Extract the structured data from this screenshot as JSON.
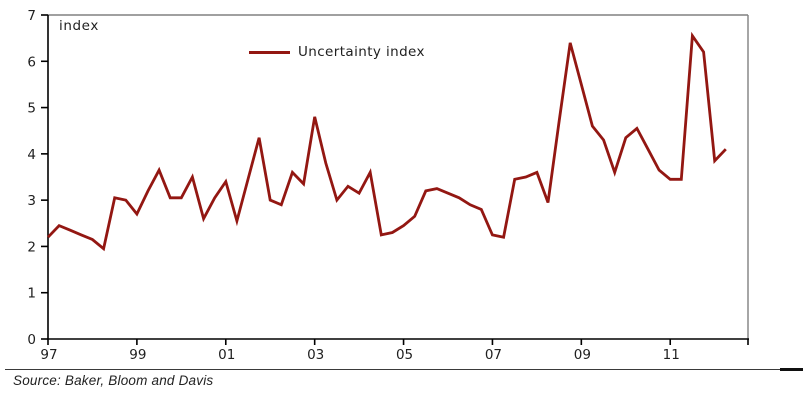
{
  "figure": {
    "y_axis_unit_label": "index",
    "legend": {
      "label": "Uncertainty index"
    },
    "source_note": "Source: Baker, Bloom and Davis"
  },
  "colors": {
    "series_line": "#931712",
    "axis": "#000000",
    "plot_border": "#808080",
    "text": "#1f1f1f"
  },
  "chart_data": {
    "type": "line",
    "title": "",
    "xlabel": "",
    "ylabel": "index",
    "ylim": [
      0,
      7
    ],
    "y_ticks": [
      0,
      1,
      2,
      3,
      4,
      5,
      6,
      7
    ],
    "grid": false,
    "legend_position": "top-center-inside",
    "frequency": "quarterly",
    "start_period": "1997Q1",
    "end_period": "2012Q2",
    "x_tick_labels": [
      "97",
      "99",
      "01",
      "03",
      "05",
      "07",
      "09",
      "11"
    ],
    "x_tick_positions_quarters": [
      0,
      8,
      16,
      24,
      32,
      40,
      48,
      56
    ],
    "series": [
      {
        "name": "Uncertainty index",
        "color": "#931712",
        "values": [
          2.2,
          2.45,
          2.35,
          2.25,
          2.15,
          1.95,
          3.05,
          3.0,
          2.7,
          3.2,
          3.65,
          3.05,
          3.05,
          3.5,
          2.6,
          3.05,
          3.4,
          2.55,
          3.45,
          4.35,
          3.0,
          2.9,
          3.6,
          3.35,
          4.8,
          3.8,
          3.0,
          3.3,
          3.15,
          3.6,
          2.25,
          2.3,
          2.45,
          2.65,
          3.2,
          3.25,
          3.15,
          3.05,
          2.9,
          2.8,
          2.25,
          2.2,
          3.45,
          3.5,
          3.6,
          2.95,
          4.7,
          6.4,
          5.5,
          4.6,
          4.3,
          3.6,
          4.35,
          4.55,
          4.1,
          3.65,
          3.45,
          3.45,
          6.55,
          6.2,
          3.85,
          4.1
        ]
      }
    ]
  }
}
